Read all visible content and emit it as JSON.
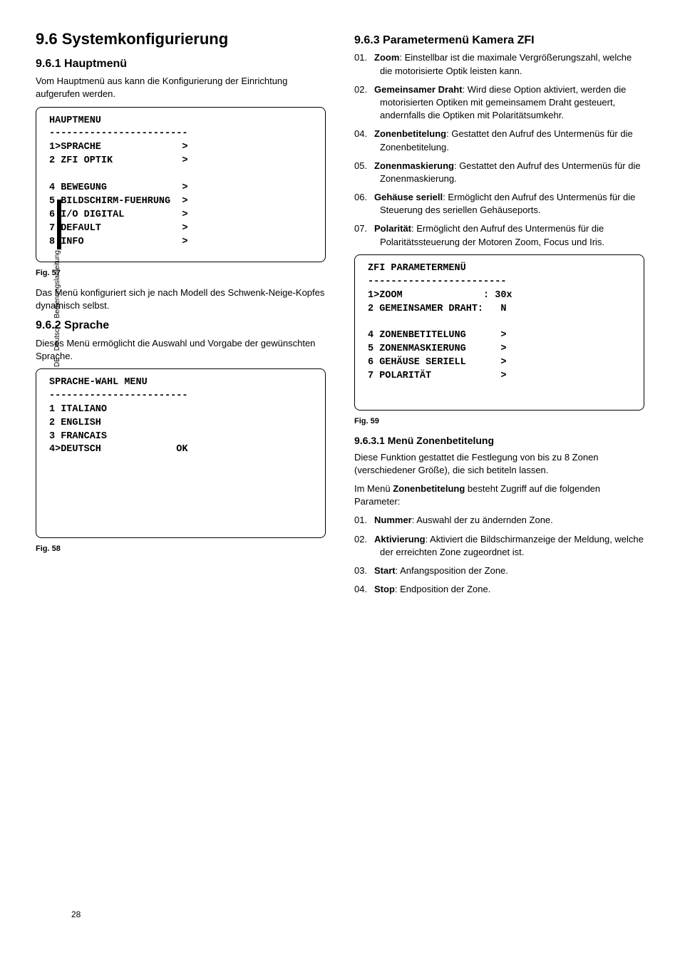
{
  "sideLabel": "DE - Deutsch - Bedienungslanleitung",
  "pageNumber": "28",
  "left": {
    "h1": "9.6  Systemkonfigurierung",
    "s1": {
      "h2": "9.6.1  Hauptmenü",
      "p1": "Vom Hauptmenü aus kann die Konfigurierung der Einrichtung aufgerufen werden.",
      "menu": "HAUPTMENU\n------------------------\n1>SPRACHE              >\n2 ZFI OPTIK            >\n\n4 BEWEGUNG             >\n5 BILDSCHIRM-FUEHRUNG  >\n6 I/O DIGITAL          >\n7 DEFAULT              >\n8 INFO                 >",
      "fig": "Fig. 57",
      "p2": "Das Menü konfiguriert sich je nach Modell des Schwenk-Neige-Kopfes dynamisch selbst."
    },
    "s2": {
      "h2": "9.6.2  Sprache",
      "p1": "Dieses Menü ermöglicht die Auswahl und Vorgabe der gewünschten Sprache.",
      "menu": "SPRACHE-WAHL MENU\n------------------------\n1 ITALIANO\n2 ENGLISH\n3 FRANCAIS\n4>DEUTSCH             OK\n\n\n\n\n\n",
      "fig": "Fig. 58"
    }
  },
  "right": {
    "h2": "9.6.3  Parametermenü Kamera ZFI",
    "items1": [
      {
        "n": "01.",
        "b": "Zoom",
        "t": ": Einstellbar ist die maximale Vergrößerungszahl, welche die motorisierte Optik leisten kann."
      },
      {
        "n": "02.",
        "b": "Gemeinsamer Draht",
        "t": ": Wird diese Option aktiviert, werden die motorisierten Optiken mit gemeinsamem Draht gesteuert, andernfalls die Optiken mit Polaritätsumkehr."
      },
      {
        "n": "04.",
        "b": "Zonenbetitelung",
        "t": ": Gestattet den Aufruf des Untermenüs für die Zonenbetitelung."
      },
      {
        "n": "05.",
        "b": "Zonenmaskierung",
        "t": ": Gestattet den Aufruf des Untermenüs für die Zonenmaskierung."
      },
      {
        "n": "06.",
        "b": "Gehäuse seriell",
        "t": ": Ermöglicht den Aufruf des Untermenüs für die Steuerung des seriellen Gehäuseports."
      },
      {
        "n": "07.",
        "b": "Polarität",
        "t": ": Ermöglicht den Aufruf des Untermenüs für die Polaritätssteuerung der Motoren Zoom, Focus und Iris."
      }
    ],
    "menu": "ZFI PARAMETERMENÜ\n------------------------\n1>ZOOM              : 30x\n2 GEMEINSAMER DRAHT:   N\n\n4 ZONENBETITELUNG      >\n5 ZONENMASKIERUNG      >\n6 GEHÄUSE SERIELL      >\n7 POLARITÄT            >\n\n",
    "fig": "Fig. 59",
    "s2": {
      "h3": "9.6.3.1  Menü Zonenbetitelung",
      "p1": "Diese Funktion gestattet die Festlegung von bis zu 8 Zonen (verschiedener Größe), die sich betiteln lassen.",
      "p2a": "Im Menü ",
      "p2b": "Zonenbetitelung",
      "p2c": " besteht Zugriff auf die folgenden Parameter:",
      "items": [
        {
          "n": "01.",
          "b": "Nummer",
          "t": ": Auswahl der zu ändernden Zone."
        },
        {
          "n": "02.",
          "b": "Aktivierung",
          "t": ": Aktiviert die Bildschirmanzeige der Meldung, welche der erreichten Zone zugeordnet ist."
        },
        {
          "n": "03.",
          "b": "Start",
          "t": ": Anfangsposition der Zone."
        },
        {
          "n": "04.",
          "b": "Stop",
          "t": ": Endposition der Zone."
        }
      ]
    }
  }
}
